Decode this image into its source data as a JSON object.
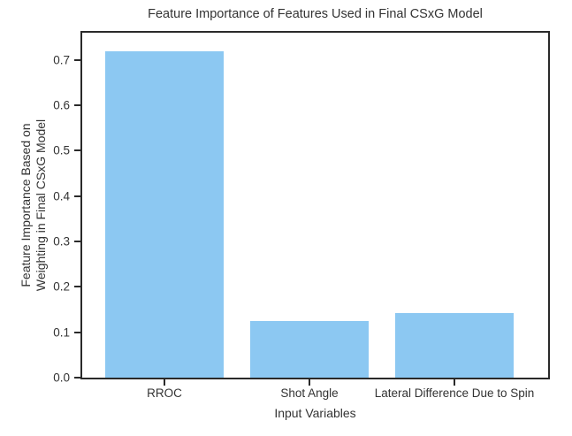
{
  "chart_data": {
    "type": "bar",
    "title": "Feature Importance of Features Used in Final CSxG Model",
    "xlabel": "Input Variables",
    "ylabel_line1": "Feature Importance Based on",
    "ylabel_line2": "Weighting in Final CSxG Model",
    "categories": [
      "RROC",
      "Shot Angle",
      "Lateral Difference Due to Spin"
    ],
    "values": [
      0.72,
      0.125,
      0.143
    ],
    "yticks": [
      0.0,
      0.1,
      0.2,
      0.3,
      0.4,
      0.5,
      0.6,
      0.7
    ],
    "ytick_labels": [
      "0.0",
      "0.1",
      "0.2",
      "0.3",
      "0.4",
      "0.5",
      "0.6",
      "0.7"
    ],
    "ylim": [
      0,
      0.76
    ],
    "grid": false,
    "legend": null,
    "bar_color": "#8cc8f2",
    "spine_color": "#2a2a2a",
    "text_color": "#333333"
  }
}
